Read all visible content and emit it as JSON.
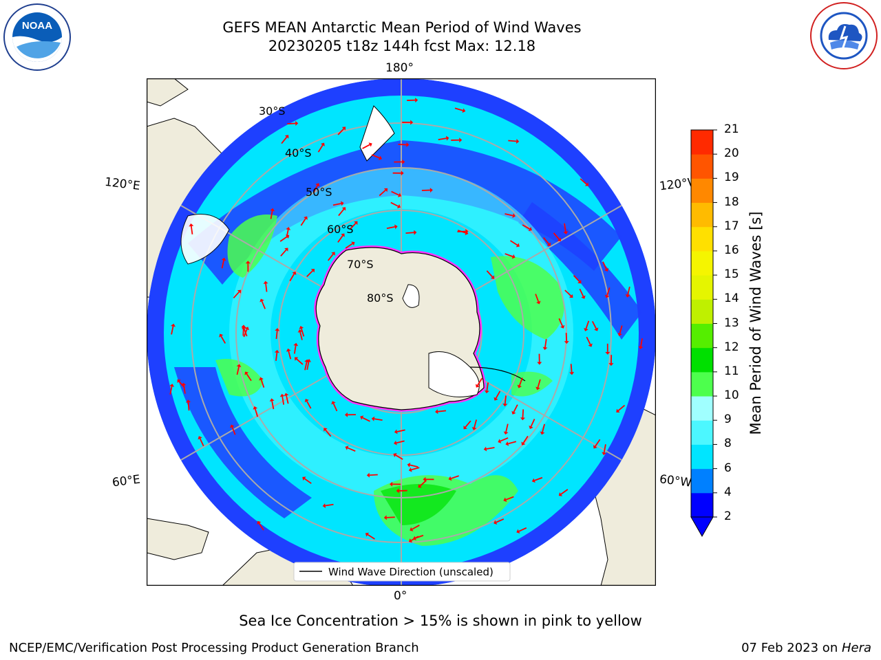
{
  "header": {
    "title_line1": "GEFS MEAN Antarctic Mean Period of Wind Waves",
    "title_line2": "20230205 t18z 144h fcst   Max: 12.18"
  },
  "logos": {
    "noaa": {
      "text": "NOAA",
      "ring_text": "NATIONAL OCEANIC AND ATMOSPHERIC ADMINISTRATION · U.S. DEPARTMENT OF COMMERCE"
    },
    "nws": {
      "ring_text": "NATIONAL WEATHER SERVICE"
    }
  },
  "map": {
    "projection": "south-polar-stereographic",
    "longitude_labels": {
      "top": "180°",
      "left_upper": "120°E",
      "right_upper": "120°W",
      "left_lower": "60°E",
      "right_lower": "60°W",
      "bottom": "0°"
    },
    "latitude_labels": [
      "30°S",
      "40°S",
      "50°S",
      "60°S",
      "70°S",
      "80°S"
    ],
    "legend": {
      "label": "Wind Wave Direction (unscaled)"
    },
    "colors": {
      "land": "#efecdc",
      "ocean_low": "#1e40ff",
      "ocean_mid": "#00e5ff",
      "ocean_high": "#4cf04c",
      "arrows": "#ff0000",
      "sea_ice": "#ff33ff"
    }
  },
  "colorbar": {
    "label": "Mean Period of Wind Waves [s]",
    "ticks": [
      "2",
      "4",
      "6",
      "8",
      "9",
      "10",
      "11",
      "12",
      "13",
      "14",
      "15",
      "16",
      "17",
      "18",
      "19",
      "20",
      "21"
    ],
    "colors": [
      "#0000ff",
      "#0080ff",
      "#00e5ff",
      "#4cf7ff",
      "#a0ffff",
      "#4dff4d",
      "#00e000",
      "#55ee00",
      "#bff000",
      "#e5f500",
      "#f5f500",
      "#ffe000",
      "#ffbb00",
      "#ff8800",
      "#ff5500",
      "#ff2a00"
    ]
  },
  "notes": {
    "sea_ice": "Sea Ice Concentration > 15% is shown in pink to yellow"
  },
  "footer": {
    "left": "NCEP/EMC/Verification Post Processing Product Generation Branch",
    "right_date": "07 Feb 2023 on ",
    "right_machine": "Hera"
  }
}
